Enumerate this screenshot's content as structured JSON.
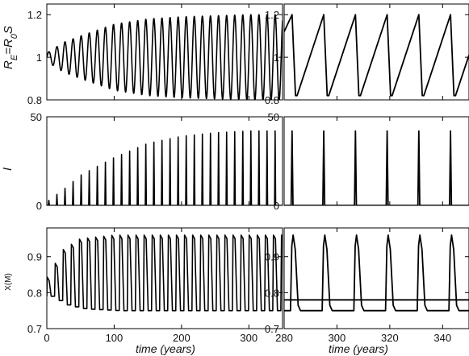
{
  "chart_data": [
    {
      "type": "line",
      "panel": "top-left",
      "ylabel": "R_E=R_0S",
      "ylabel_main": "R",
      "ylabel_sub1": "E",
      "ylabel_mid": "=R",
      "ylabel_sub2": "0",
      "ylabel_end": "S",
      "xlim": [
        0,
        350
      ],
      "ylim": [
        0.8,
        1.25
      ],
      "yticks": [
        0.8,
        1,
        1.2
      ],
      "ytick_labels": [
        "0.8",
        "1",
        "1.2"
      ],
      "grid": false,
      "series": [
        {
          "kind": "oscillation_envelope",
          "center": 1.0,
          "period_years": 12,
          "amplitude_envelope": {
            "x": [
              0,
              25,
              50,
              100,
              150,
              200,
              250,
              300,
              350
            ],
            "y": [
              0.02,
              0.07,
              0.1,
              0.155,
              0.18,
              0.19,
              0.195,
              0.2,
              0.2
            ]
          }
        }
      ]
    },
    {
      "type": "line",
      "panel": "top-right",
      "xlim": [
        280,
        350
      ],
      "ylim": [
        0.8,
        1.25
      ],
      "yticks": [
        0.8,
        1,
        1.2
      ],
      "ytick_labels": [
        "0.8",
        "1",
        "1.2"
      ],
      "grid": false,
      "series": [
        {
          "kind": "sawtooth",
          "peaks_x": [
            283,
            295,
            307,
            319,
            331,
            343
          ],
          "y_min": 0.82,
          "y_max": 1.2,
          "start_value": 1.12,
          "end_value": 1.01
        }
      ]
    },
    {
      "type": "line",
      "panel": "middle-left",
      "ylabel": "I",
      "xlim": [
        0,
        350
      ],
      "ylim": [
        0,
        50
      ],
      "yticks": [
        0,
        50
      ],
      "ytick_labels": [
        "0",
        "50"
      ],
      "grid": false,
      "series": [
        {
          "kind": "spikes",
          "period_years": 12,
          "peak_envelope": {
            "x": [
              0,
              25,
              50,
              100,
              150,
              200,
              250,
              300,
              350
            ],
            "y": [
              2,
              9,
              17,
              27,
              35,
              39,
              41,
              42,
              42
            ]
          }
        }
      ]
    },
    {
      "type": "line",
      "panel": "middle-right",
      "xlim": [
        280,
        350
      ],
      "ylim": [
        0,
        50
      ],
      "yticks": [
        0,
        50
      ],
      "ytick_labels": [
        "0",
        "50"
      ],
      "grid": false,
      "series": [
        {
          "kind": "spikes",
          "peaks_x": [
            283,
            295,
            307,
            319,
            331,
            343
          ],
          "peak_y": 42
        }
      ]
    },
    {
      "type": "line",
      "panel": "bottom-left",
      "ylabel": "X(M)",
      "xlabel": "time (years)",
      "xlim": [
        0,
        350
      ],
      "xticks": [
        0,
        100,
        200,
        300
      ],
      "xtick_labels": [
        "0",
        "100",
        "200",
        "300"
      ],
      "ylim": [
        0.7,
        0.98
      ],
      "yticks": [
        0.7,
        0.8,
        0.9
      ],
      "ytick_labels": [
        "0.7",
        "0.8",
        "0.9"
      ],
      "grid": false,
      "series": [
        {
          "kind": "pulses",
          "period_years": 12,
          "baseline_envelope": {
            "x": [
              0,
              25,
              50,
              100,
              200,
              350
            ],
            "y": [
              0.79,
              0.765,
              0.755,
              0.75,
              0.75,
              0.75
            ]
          },
          "peak_envelope": {
            "x": [
              0,
              25,
              50,
              100,
              200,
              350
            ],
            "y": [
              0.84,
              0.92,
              0.95,
              0.96,
              0.96,
              0.96
            ]
          }
        }
      ]
    },
    {
      "type": "line",
      "panel": "bottom-right",
      "xlabel": "time (years)",
      "xlim": [
        280,
        350
      ],
      "xticks": [
        280,
        300,
        320,
        340
      ],
      "xtick_labels": [
        "280",
        "300",
        "320",
        "340"
      ],
      "ylim": [
        0.7,
        0.98
      ],
      "yticks": [
        0.7,
        0.8,
        0.9
      ],
      "ytick_labels": [
        "0.7",
        "0.8",
        "0.9"
      ],
      "grid": false,
      "series": [
        {
          "kind": "pulses",
          "peaks_x": [
            283,
            295,
            307,
            319,
            331,
            343
          ],
          "baseline": 0.75,
          "peak_y": 0.96
        },
        {
          "kind": "hline",
          "y": 0.78
        }
      ]
    }
  ]
}
